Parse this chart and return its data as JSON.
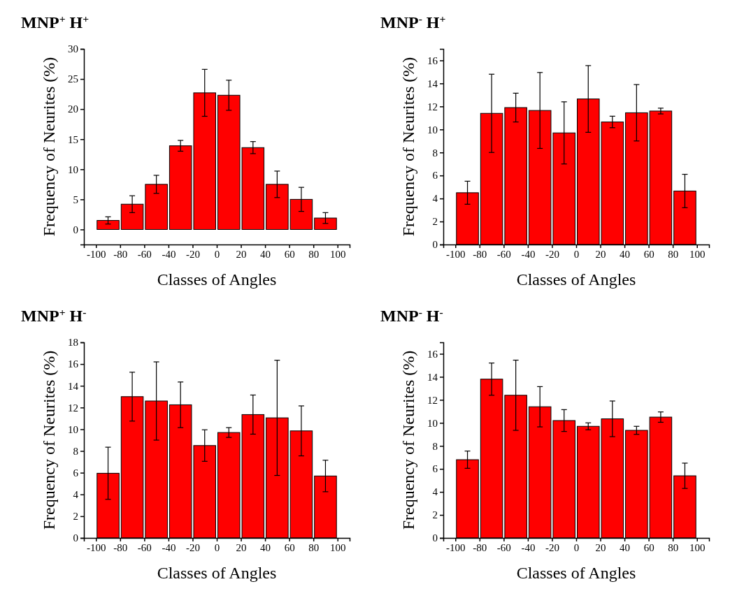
{
  "chart_data": [
    {
      "type": "histogram",
      "title": "MNP$^{+}$ H$^{+}$",
      "xlabel": "Classes of Angles",
      "ylabel": "Frequency of Neurites (%)",
      "color": "#ff0000",
      "bins": [
        -100,
        -80,
        -60,
        -40,
        -20,
        0,
        20,
        40,
        60,
        80,
        100
      ],
      "values": [
        1.5,
        4.2,
        7.5,
        13.9,
        22.7,
        22.3,
        13.6,
        7.5,
        5.0,
        1.9
      ],
      "errors": [
        0.6,
        1.4,
        1.5,
        0.9,
        3.9,
        2.5,
        1.0,
        2.2,
        2.0,
        0.9
      ],
      "xlim": [
        -110,
        110
      ],
      "xticks": [
        -100,
        -80,
        -60,
        -40,
        -20,
        0,
        20,
        40,
        60,
        80,
        100
      ],
      "ylim": [
        -2.5,
        30
      ],
      "yticks": [
        0,
        5,
        10,
        15,
        20,
        25,
        30
      ]
    },
    {
      "type": "histogram",
      "title": "MNP$^{-}$ H$^{+}$",
      "xlabel": "Classes of Angles",
      "ylabel": "Frequency of Neurites (%)",
      "color": "#ff0000",
      "bins": [
        -100,
        -80,
        -60,
        -40,
        -20,
        0,
        20,
        40,
        60,
        80,
        100
      ],
      "values": [
        4.5,
        11.4,
        11.9,
        11.65,
        9.7,
        12.65,
        10.65,
        11.45,
        11.6,
        4.65
      ],
      "errors": [
        1.0,
        3.4,
        1.25,
        3.3,
        2.7,
        2.9,
        0.5,
        2.45,
        0.25,
        1.45
      ],
      "xlim": [
        -110,
        110
      ],
      "xticks": [
        -100,
        -80,
        -60,
        -40,
        -20,
        0,
        20,
        40,
        60,
        80,
        100
      ],
      "ylim": [
        0,
        17
      ],
      "yticks": [
        0,
        2,
        4,
        6,
        8,
        10,
        12,
        14,
        16
      ]
    },
    {
      "type": "histogram",
      "title": "MNP$^{+}$ H$^{-}$",
      "xlabel": "Classes of Angles",
      "ylabel": "Frequency of Neurites (%)",
      "color": "#ff0000",
      "bins": [
        -100,
        -80,
        -60,
        -40,
        -20,
        0,
        20,
        40,
        60,
        80,
        100
      ],
      "values": [
        5.95,
        13.0,
        12.6,
        12.25,
        8.5,
        9.7,
        11.35,
        11.05,
        9.85,
        5.7
      ],
      "errors": [
        2.4,
        2.25,
        3.6,
        2.1,
        1.45,
        0.45,
        1.8,
        5.3,
        2.3,
        1.45
      ],
      "xlim": [
        -110,
        110
      ],
      "xticks": [
        -100,
        -80,
        -60,
        -40,
        -20,
        0,
        20,
        40,
        60,
        80,
        100
      ],
      "ylim": [
        0,
        18
      ],
      "yticks": [
        0,
        2,
        4,
        6,
        8,
        10,
        12,
        14,
        16,
        18
      ]
    },
    {
      "type": "histogram",
      "title": "MNP$^{-}$ H$^{-}$",
      "xlabel": "Classes of Angles",
      "ylabel": "Frequency of Neurites (%)",
      "color": "#ff0000",
      "bins": [
        -100,
        -80,
        -60,
        -40,
        -20,
        0,
        20,
        40,
        60,
        80,
        100
      ],
      "values": [
        6.8,
        13.8,
        12.4,
        11.4,
        10.2,
        9.7,
        10.35,
        9.35,
        10.5,
        5.4
      ],
      "errors": [
        0.75,
        1.4,
        3.05,
        1.75,
        0.95,
        0.3,
        1.55,
        0.35,
        0.45,
        1.1
      ],
      "xlim": [
        -110,
        110
      ],
      "xticks": [
        -100,
        -80,
        -60,
        -40,
        -20,
        0,
        20,
        40,
        60,
        80,
        100
      ],
      "ylim": [
        0,
        17
      ],
      "yticks": [
        0,
        2,
        4,
        6,
        8,
        10,
        12,
        14,
        16
      ]
    }
  ]
}
